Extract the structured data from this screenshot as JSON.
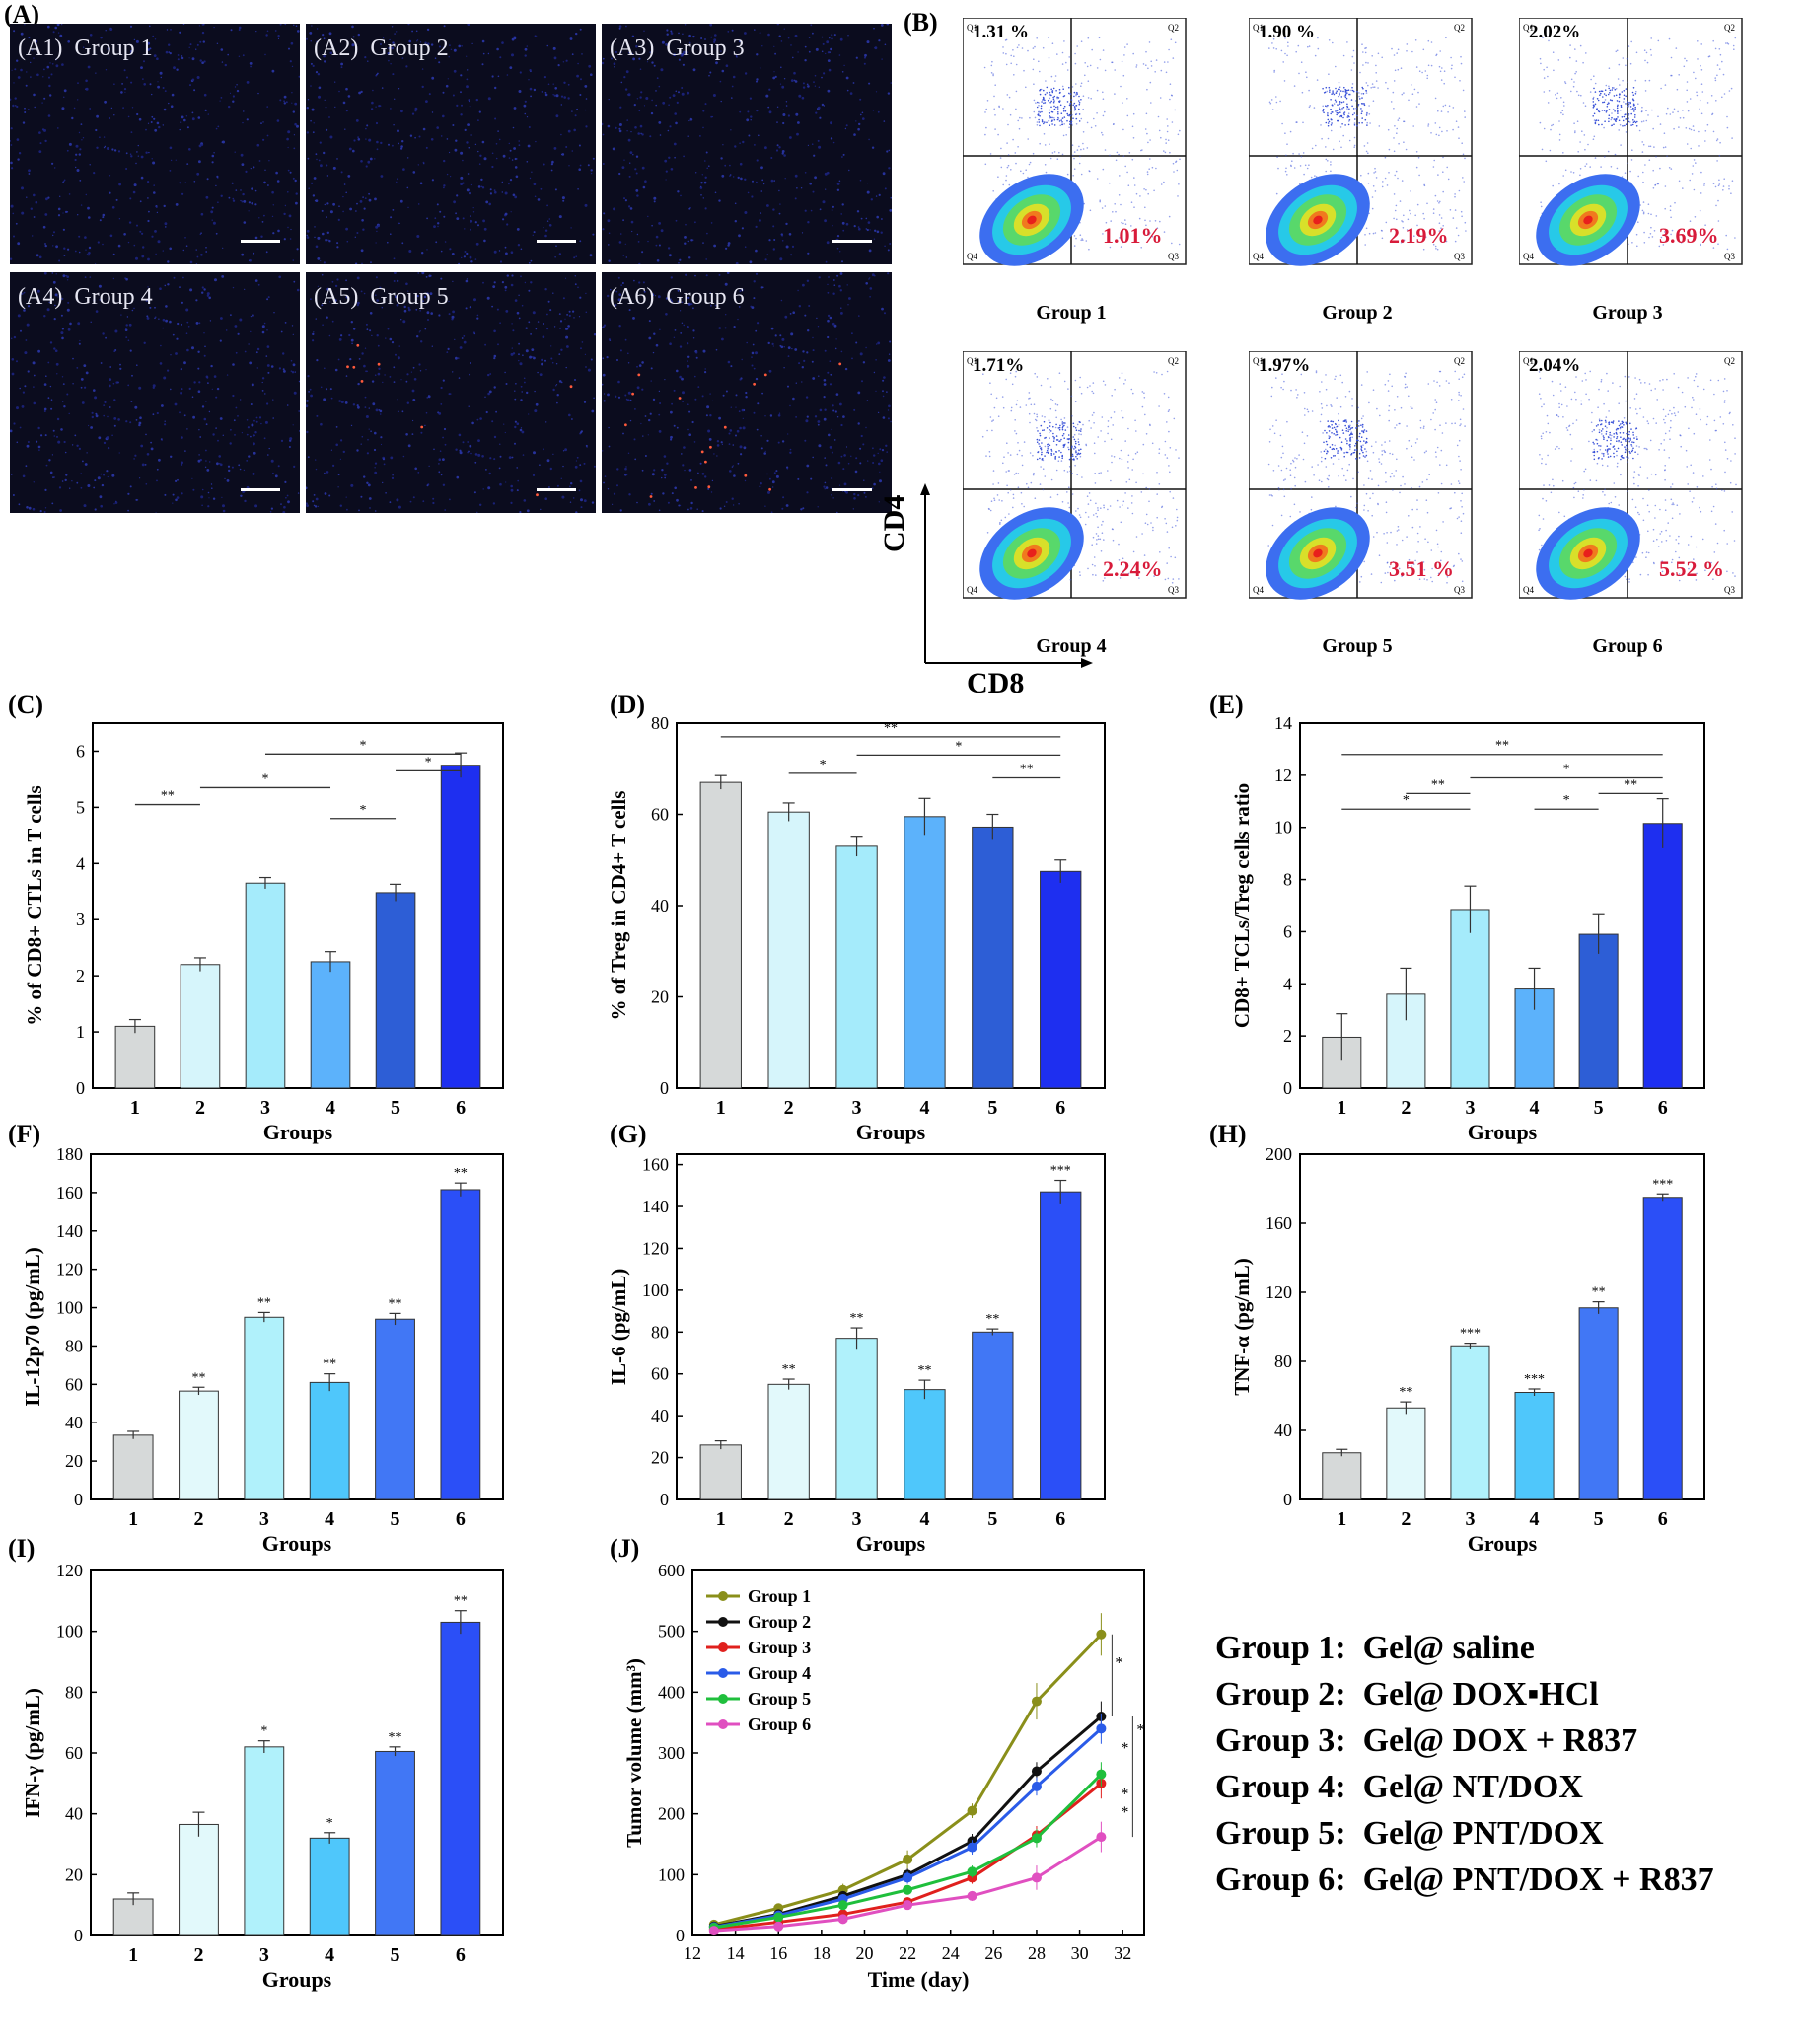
{
  "panel_A": {
    "label": "(A)",
    "tiles": [
      {
        "id": "A1",
        "text": "(A1)  Group 1"
      },
      {
        "id": "A2",
        "text": "(A2)  Group 2"
      },
      {
        "id": "A3",
        "text": "(A3)  Group 3"
      },
      {
        "id": "A4",
        "text": "(A4)  Group 4"
      },
      {
        "id": "A5",
        "text": "(A5)  Group 5"
      },
      {
        "id": "A6",
        "text": "(A6)  Group 6"
      }
    ]
  },
  "panel_B": {
    "label": "(B)",
    "x_axis_label": "CD8",
    "y_axis_label": "CD4",
    "plots": [
      {
        "group": "Group 1",
        "q1": "1.31 %",
        "q3": "1.01%"
      },
      {
        "group": "Group 2",
        "q1": "1.90 %",
        "q3": "2.19%"
      },
      {
        "group": "Group 3",
        "q1": "2.02%",
        "q3": "3.69%"
      },
      {
        "group": "Group 4",
        "q1": "1.71%",
        "q3": "2.24%"
      },
      {
        "group": "Group 5",
        "q1": "1.97%",
        "q3": "3.51 %"
      },
      {
        "group": "Group 6",
        "q1": "2.04%",
        "q3": "5.52 %"
      }
    ],
    "quadrant_labels": [
      "Q1",
      "Q2",
      "Q3",
      "Q4"
    ]
  },
  "colors": {
    "bars": [
      "#d6d9d9",
      "#d6f5fb",
      "#a5ebfb",
      "#5cb2fb",
      "#2d5ed6",
      "#1e2ff0"
    ],
    "bars_F": [
      "#d6d9d9",
      "#e2f9fb",
      "#b0f1fb",
      "#4fc7fb",
      "#4177f5",
      "#2b4ff7"
    ],
    "highlight_red": "#d81b3a",
    "lines": [
      "#8a8f1a",
      "#111111",
      "#e0201d",
      "#2a5be8",
      "#1fbf3c",
      "#e04fc0"
    ]
  },
  "chart_data": [
    {
      "id": "C",
      "label": "(C)",
      "type": "bar",
      "categories": [
        "1",
        "2",
        "3",
        "4",
        "5",
        "6"
      ],
      "values": [
        1.1,
        2.2,
        3.65,
        2.25,
        3.48,
        5.75
      ],
      "errors": [
        0.12,
        0.12,
        0.1,
        0.18,
        0.15,
        0.22
      ],
      "ylabel": "% of CD8+ CTLs in T cells",
      "xlabel": "Groups",
      "ylim": [
        0,
        6.5
      ],
      "yticks": [
        0,
        1,
        2,
        3,
        4,
        5,
        6
      ],
      "sig": [
        {
          "from": 1,
          "to": 2,
          "y": 5.05,
          "text": "**"
        },
        {
          "from": 2,
          "to": 4,
          "y": 5.35,
          "text": "*"
        },
        {
          "from": 4,
          "to": 5,
          "y": 4.8,
          "text": "*"
        },
        {
          "from": 3,
          "to": 6,
          "y": 5.95,
          "text": "*"
        },
        {
          "from": 5,
          "to": 6,
          "y": 5.65,
          "text": "*"
        }
      ]
    },
    {
      "id": "D",
      "label": "(D)",
      "type": "bar",
      "categories": [
        "1",
        "2",
        "3",
        "4",
        "5",
        "6"
      ],
      "values": [
        67,
        60.5,
        53,
        59.5,
        57.2,
        47.5
      ],
      "errors": [
        1.5,
        2,
        2.2,
        4,
        2.8,
        2.5
      ],
      "ylabel": "% of Treg in CD4+ T cells",
      "xlabel": "Groups",
      "ylim": [
        0,
        80
      ],
      "yticks": [
        0,
        20,
        40,
        60,
        80
      ],
      "sig": [
        {
          "from": 1,
          "to": 6,
          "y": 77,
          "text": "**"
        },
        {
          "from": 2,
          "to": 3,
          "y": 69,
          "text": "*"
        },
        {
          "from": 3,
          "to": 6,
          "y": 73,
          "text": "*"
        },
        {
          "from": 5,
          "to": 6,
          "y": 68,
          "text": "**"
        }
      ]
    },
    {
      "id": "E",
      "label": "(E)",
      "type": "bar",
      "categories": [
        "1",
        "2",
        "3",
        "4",
        "5",
        "6"
      ],
      "values": [
        1.95,
        3.6,
        6.85,
        3.8,
        5.9,
        10.15
      ],
      "errors": [
        0.9,
        1,
        0.9,
        0.8,
        0.75,
        0.95
      ],
      "ylabel": "CD8+ TCLs/Treg cells ratio",
      "xlabel": "Groups",
      "ylim": [
        0,
        14
      ],
      "yticks": [
        0,
        2,
        4,
        6,
        8,
        10,
        12,
        14
      ],
      "sig": [
        {
          "from": 1,
          "to": 6,
          "y": 12.8,
          "text": "**"
        },
        {
          "from": 1,
          "to": 3,
          "y": 10.7,
          "text": "*"
        },
        {
          "from": 2,
          "to": 3,
          "y": 11.3,
          "text": "**"
        },
        {
          "from": 3,
          "to": 6,
          "y": 11.9,
          "text": "*"
        },
        {
          "from": 4,
          "to": 5,
          "y": 10.7,
          "text": "*"
        },
        {
          "from": 5,
          "to": 6,
          "y": 11.3,
          "text": "**"
        }
      ]
    },
    {
      "id": "F",
      "label": "(F)",
      "type": "bar",
      "categories": [
        "1",
        "2",
        "3",
        "4",
        "5",
        "6"
      ],
      "values": [
        33.5,
        56.5,
        95,
        61,
        94,
        161.5
      ],
      "errors": [
        2,
        2,
        2.5,
        4.5,
        3,
        3.5
      ],
      "ylabel": "IL-12p70 (pg/mL)",
      "xlabel": "Groups",
      "ylim": [
        0,
        180
      ],
      "yticks": [
        0,
        20,
        40,
        60,
        80,
        100,
        120,
        140,
        160,
        180
      ],
      "stars": [
        "",
        "**",
        "**",
        "**",
        "**",
        "**"
      ]
    },
    {
      "id": "G",
      "label": "(G)",
      "type": "bar",
      "categories": [
        "1",
        "2",
        "3",
        "4",
        "5",
        "6"
      ],
      "values": [
        26,
        55,
        77,
        52.5,
        80,
        147
      ],
      "errors": [
        2,
        2.5,
        5,
        4.5,
        1.5,
        5.5
      ],
      "ylabel": "IL-6 (pg/mL)",
      "xlabel": "Groups",
      "ylim": [
        0,
        165
      ],
      "yticks": [
        0,
        20,
        40,
        60,
        80,
        100,
        120,
        140,
        160
      ],
      "stars": [
        "",
        "**",
        "**",
        "**",
        "**",
        "***"
      ]
    },
    {
      "id": "H",
      "label": "(H)",
      "type": "bar",
      "categories": [
        "1",
        "2",
        "3",
        "4",
        "5",
        "6"
      ],
      "values": [
        27,
        53,
        89,
        62,
        111,
        175
      ],
      "errors": [
        2,
        3.5,
        1.5,
        2,
        3.5,
        2
      ],
      "ylabel": "TNF-α (pg/mL)",
      "xlabel": "Groups",
      "ylim": [
        0,
        200
      ],
      "yticks": [
        0,
        40,
        80,
        120,
        160,
        200
      ],
      "stars": [
        "",
        "**",
        "***",
        "***",
        "**",
        "***"
      ]
    },
    {
      "id": "I",
      "label": "(I)",
      "type": "bar",
      "categories": [
        "1",
        "2",
        "3",
        "4",
        "5",
        "6"
      ],
      "values": [
        12,
        36.5,
        62,
        32,
        60.5,
        103
      ],
      "errors": [
        2,
        4,
        2,
        1.8,
        1.5,
        3.8
      ],
      "ylabel": "IFN-γ (pg/mL)",
      "xlabel": "Groups",
      "ylim": [
        0,
        120
      ],
      "yticks": [
        0,
        20,
        40,
        60,
        80,
        100,
        120
      ],
      "stars": [
        "",
        "",
        "*",
        "*",
        "**",
        "**"
      ]
    },
    {
      "id": "J",
      "label": "(J)",
      "type": "line",
      "x": [
        13,
        16,
        19,
        22,
        25,
        28,
        31
      ],
      "series": [
        {
          "name": "Group 1",
          "values": [
            18,
            45,
            75,
            125,
            205,
            385,
            495
          ],
          "errors": [
            5,
            6,
            10,
            15,
            12,
            30,
            35
          ]
        },
        {
          "name": "Group 2",
          "values": [
            15,
            35,
            65,
            100,
            155,
            270,
            360
          ],
          "errors": [
            4,
            5,
            8,
            10,
            12,
            15,
            25
          ]
        },
        {
          "name": "Group 3",
          "values": [
            10,
            22,
            35,
            55,
            95,
            165,
            250
          ],
          "errors": [
            3,
            4,
            6,
            8,
            10,
            15,
            25
          ]
        },
        {
          "name": "Group 4",
          "values": [
            14,
            33,
            60,
            95,
            145,
            245,
            340
          ],
          "errors": [
            4,
            5,
            8,
            10,
            12,
            15,
            25
          ]
        },
        {
          "name": "Group 5",
          "values": [
            13,
            30,
            50,
            75,
            105,
            160,
            265
          ],
          "errors": [
            4,
            5,
            6,
            8,
            10,
            15,
            20
          ]
        },
        {
          "name": "Group 6",
          "values": [
            8,
            15,
            27,
            50,
            65,
            95,
            162
          ],
          "errors": [
            3,
            4,
            5,
            6,
            8,
            20,
            25
          ]
        }
      ],
      "xlabel": "Time (day)",
      "ylabel": "Tumor volume (mm³)",
      "xlim": [
        12,
        33
      ],
      "xticks": [
        12,
        14,
        16,
        18,
        20,
        22,
        24,
        26,
        28,
        30,
        32
      ],
      "ylim": [
        0,
        600
      ],
      "yticks": [
        0,
        100,
        200,
        300,
        400,
        500,
        600
      ],
      "stars": [
        "*",
        "*",
        "*",
        "*",
        "*"
      ]
    }
  ],
  "legend": [
    "Group 1:  Gel@ saline",
    "Group 2:  Gel@ DOX▪HCl",
    "Group 3:  Gel@ DOX + R837",
    "Group 4:  Gel@ NT/DOX",
    "Group 5:  Gel@ PNT/DOX",
    "Group 6:  Gel@ PNT/DOX + R837"
  ]
}
